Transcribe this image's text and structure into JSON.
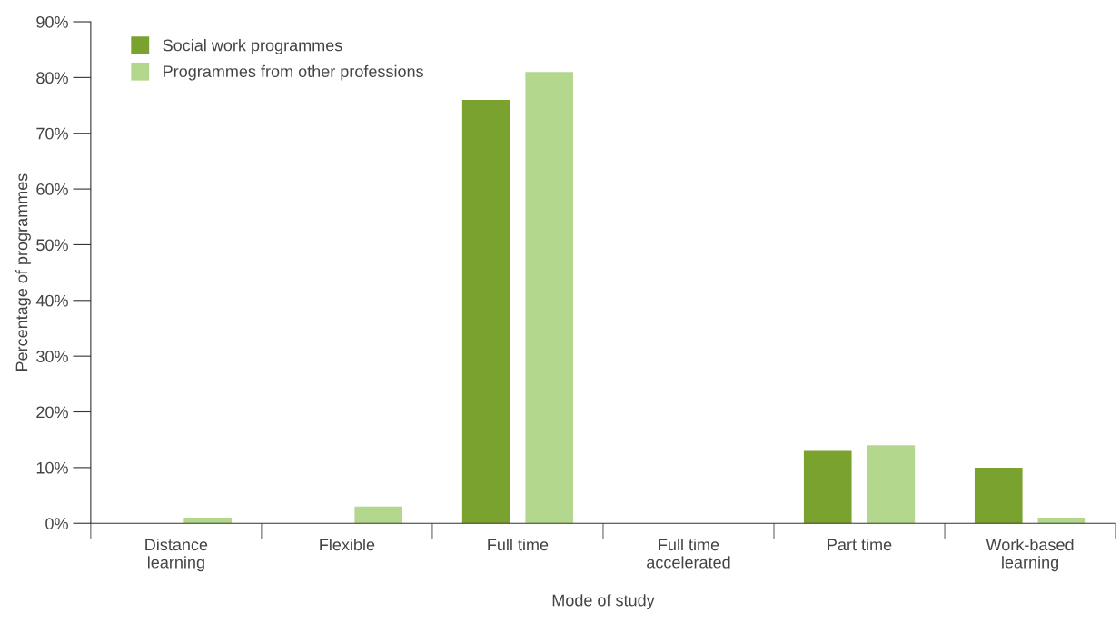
{
  "chart_data": {
    "type": "bar",
    "xlabel": "Mode of study",
    "ylabel": "Percentage of programmes",
    "categories": [
      "Distance\nlearning",
      "Flexible",
      "Full time",
      "Full time\naccelerated",
      "Part time",
      "Work-based\nlearning"
    ],
    "series": [
      {
        "name": "Social work programmes",
        "color": "#7aa22f",
        "values": [
          0,
          0,
          76,
          0,
          13,
          10
        ]
      },
      {
        "name": "Programmes from other professions",
        "color": "#b3d88d",
        "values": [
          1,
          3,
          81,
          0,
          14,
          1
        ]
      }
    ],
    "ylim": [
      0,
      90
    ],
    "yticks": [
      {
        "value": 0,
        "label": "0%"
      },
      {
        "value": 10,
        "label": "10%"
      },
      {
        "value": 20,
        "label": "20%"
      },
      {
        "value": 30,
        "label": "30%"
      },
      {
        "value": 40,
        "label": "40%"
      },
      {
        "value": 50,
        "label": "50%"
      },
      {
        "value": 60,
        "label": "60%"
      },
      {
        "value": 70,
        "label": "70%"
      },
      {
        "value": 80,
        "label": "80%"
      },
      {
        "value": 90,
        "label": "90%"
      }
    ],
    "grid": false,
    "legend": "top left"
  }
}
